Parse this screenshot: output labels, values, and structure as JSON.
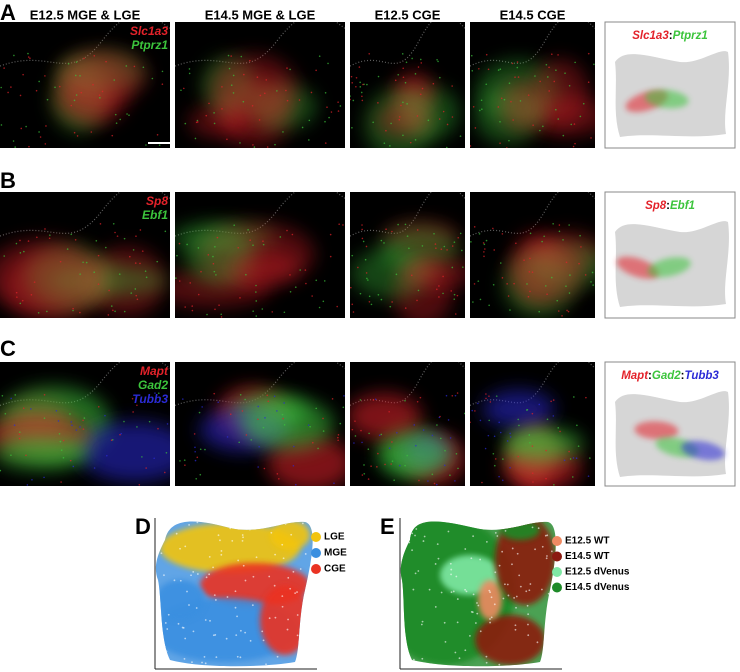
{
  "columns": [
    "E12.5 MGE & LGE",
    "E14.5 MGE & LGE",
    "E12.5 CGE",
    "E14.5 CGE"
  ],
  "gene_separator": ":",
  "rows": [
    {
      "letter": "A",
      "genes": [
        {
          "name": "Slc1a3",
          "color": "#e3222a"
        },
        {
          "name": "Ptprz1",
          "color": "#3cc43c"
        }
      ]
    },
    {
      "letter": "B",
      "genes": [
        {
          "name": "Sp8",
          "color": "#e3222a"
        },
        {
          "name": "Ebf1",
          "color": "#3cc43c"
        }
      ]
    },
    {
      "letter": "C",
      "genes": [
        {
          "name": "Mapt",
          "color": "#e3222a"
        },
        {
          "name": "Gad2",
          "color": "#3cc43c"
        },
        {
          "name": "Tubb3",
          "color": "#2b2bd6"
        }
      ]
    }
  ],
  "panels": [
    {
      "letter": "D",
      "legend": [
        {
          "name": "LGE",
          "color": "#f2c40f"
        },
        {
          "name": "MGE",
          "color": "#3a8fe0"
        },
        {
          "name": "CGE",
          "color": "#ea3323"
        }
      ]
    },
    {
      "letter": "E",
      "legend": [
        {
          "name": "E12.5 WT",
          "color": "#ef8a62"
        },
        {
          "name": "E14.5 WT",
          "color": "#8b1a10"
        },
        {
          "name": "E12.5 dVenus",
          "color": "#7fe8a4"
        },
        {
          "name": "E14.5 dVenus",
          "color": "#1e8a28"
        }
      ]
    }
  ]
}
